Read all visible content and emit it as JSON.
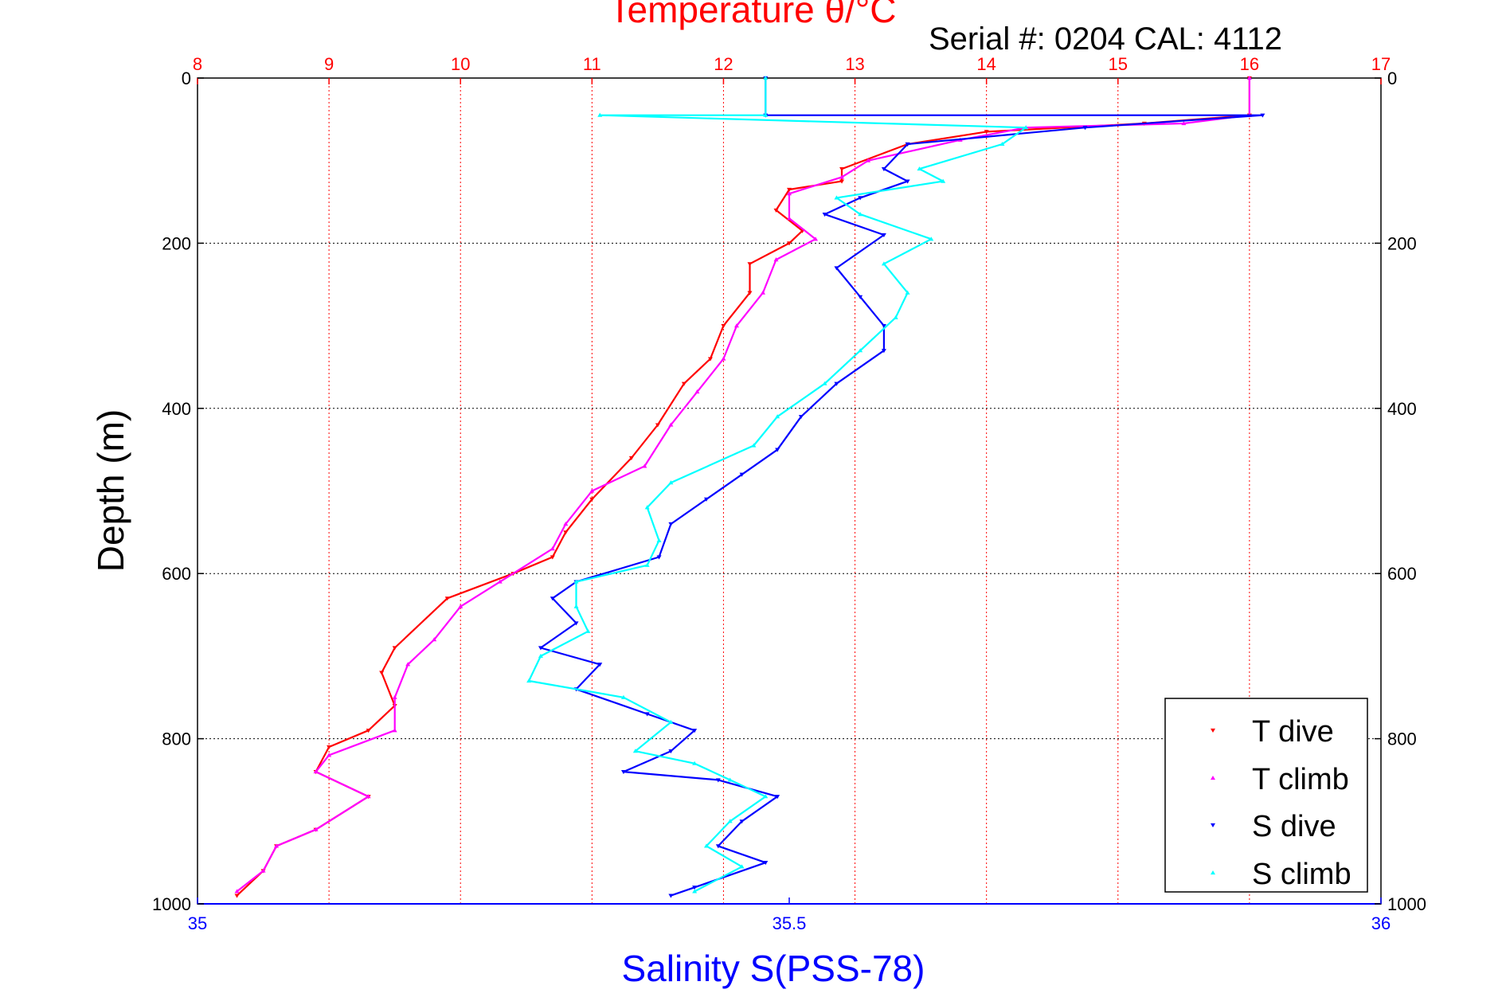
{
  "chart_data": {
    "type": "scatter",
    "title": "Temperature θ/°C",
    "annotation": "Serial #: 0204  CAL: 4112",
    "ylabel": "Depth (m)",
    "xlabel": "Salinity S(PSS-78)",
    "depth_axis": {
      "range": [
        0,
        1000
      ],
      "ticks": [
        0,
        200,
        400,
        600,
        800,
        1000
      ],
      "reversed": true
    },
    "temperature_axis": {
      "position": "top",
      "range": [
        8,
        17
      ],
      "ticks": [
        8,
        9,
        10,
        11,
        12,
        13,
        14,
        15,
        16,
        17
      ],
      "color": "#ff0000"
    },
    "salinity_axis": {
      "position": "bottom",
      "range": [
        35,
        36
      ],
      "ticks": [
        35,
        35.5,
        36
      ],
      "tick_labels": [
        "35",
        "35.5",
        "36"
      ],
      "color": "#0000ff"
    },
    "grid": {
      "vertical": "temperature ticks, red dotted",
      "horizontal": "depth ticks, black dotted"
    },
    "legend": {
      "placement": "bottom-right"
    },
    "series": [
      {
        "name": "T dive",
        "axis": "temperature",
        "color": "#ff0000",
        "marker": "triangle-down",
        "points": [
          [
            16.0,
            0
          ],
          [
            16.0,
            45
          ],
          [
            15.2,
            55
          ],
          [
            14.0,
            65
          ],
          [
            13.4,
            80
          ],
          [
            12.9,
            110
          ],
          [
            12.9,
            125
          ],
          [
            12.5,
            135
          ],
          [
            12.4,
            160
          ],
          [
            12.6,
            185
          ],
          [
            12.5,
            200
          ],
          [
            12.2,
            225
          ],
          [
            12.2,
            260
          ],
          [
            12.0,
            300
          ],
          [
            11.9,
            340
          ],
          [
            11.7,
            370
          ],
          [
            11.5,
            420
          ],
          [
            11.3,
            460
          ],
          [
            11.0,
            510
          ],
          [
            10.8,
            550
          ],
          [
            10.7,
            580
          ],
          [
            10.4,
            600
          ],
          [
            9.9,
            630
          ],
          [
            9.5,
            690
          ],
          [
            9.4,
            720
          ],
          [
            9.5,
            760
          ],
          [
            9.3,
            790
          ],
          [
            9.0,
            810
          ],
          [
            8.9,
            840
          ],
          [
            9.3,
            870
          ],
          [
            8.9,
            910
          ],
          [
            8.6,
            930
          ],
          [
            8.5,
            960
          ],
          [
            8.3,
            990
          ]
        ]
      },
      {
        "name": "T climb",
        "axis": "temperature",
        "color": "#ff00ff",
        "marker": "triangle-up",
        "points": [
          [
            16.0,
            0
          ],
          [
            16.0,
            45
          ],
          [
            15.5,
            55
          ],
          [
            14.3,
            60
          ],
          [
            13.8,
            75
          ],
          [
            13.1,
            100
          ],
          [
            12.9,
            120
          ],
          [
            12.5,
            140
          ],
          [
            12.5,
            170
          ],
          [
            12.7,
            195
          ],
          [
            12.4,
            220
          ],
          [
            12.3,
            260
          ],
          [
            12.1,
            300
          ],
          [
            12.0,
            340
          ],
          [
            11.8,
            380
          ],
          [
            11.6,
            420
          ],
          [
            11.4,
            470
          ],
          [
            11.0,
            500
          ],
          [
            10.8,
            540
          ],
          [
            10.7,
            570
          ],
          [
            10.3,
            610
          ],
          [
            10.0,
            640
          ],
          [
            9.8,
            680
          ],
          [
            9.6,
            710
          ],
          [
            9.5,
            750
          ],
          [
            9.5,
            790
          ],
          [
            9.0,
            820
          ],
          [
            8.9,
            840
          ],
          [
            9.3,
            870
          ],
          [
            8.9,
            910
          ],
          [
            8.6,
            930
          ],
          [
            8.5,
            960
          ],
          [
            8.3,
            985
          ]
        ]
      },
      {
        "name": "S dive",
        "axis": "salinity",
        "color": "#0000ff",
        "marker": "triangle-down",
        "points": [
          [
            35.48,
            0
          ],
          [
            35.48,
            45
          ],
          [
            35.9,
            45
          ],
          [
            35.75,
            60
          ],
          [
            35.6,
            80
          ],
          [
            35.58,
            110
          ],
          [
            35.6,
            125
          ],
          [
            35.56,
            145
          ],
          [
            35.53,
            165
          ],
          [
            35.58,
            190
          ],
          [
            35.54,
            230
          ],
          [
            35.56,
            265
          ],
          [
            35.58,
            300
          ],
          [
            35.58,
            330
          ],
          [
            35.54,
            370
          ],
          [
            35.51,
            410
          ],
          [
            35.49,
            450
          ],
          [
            35.46,
            480
          ],
          [
            35.43,
            510
          ],
          [
            35.4,
            540
          ],
          [
            35.39,
            580
          ],
          [
            35.32,
            610
          ],
          [
            35.3,
            630
          ],
          [
            35.32,
            660
          ],
          [
            35.29,
            690
          ],
          [
            35.34,
            710
          ],
          [
            35.32,
            740
          ],
          [
            35.38,
            770
          ],
          [
            35.42,
            790
          ],
          [
            35.4,
            815
          ],
          [
            35.36,
            840
          ],
          [
            35.44,
            850
          ],
          [
            35.49,
            870
          ],
          [
            35.46,
            900
          ],
          [
            35.44,
            930
          ],
          [
            35.48,
            950
          ],
          [
            35.42,
            980
          ],
          [
            35.4,
            990
          ]
        ]
      },
      {
        "name": "S climb",
        "axis": "salinity",
        "color": "#00ffff",
        "marker": "triangle-up",
        "points": [
          [
            35.48,
            0
          ],
          [
            35.48,
            45
          ],
          [
            35.34,
            45
          ],
          [
            35.7,
            60
          ],
          [
            35.68,
            80
          ],
          [
            35.61,
            110
          ],
          [
            35.63,
            125
          ],
          [
            35.54,
            145
          ],
          [
            35.56,
            165
          ],
          [
            35.62,
            195
          ],
          [
            35.58,
            225
          ],
          [
            35.6,
            260
          ],
          [
            35.59,
            290
          ],
          [
            35.56,
            330
          ],
          [
            35.53,
            370
          ],
          [
            35.49,
            410
          ],
          [
            35.47,
            445
          ],
          [
            35.4,
            490
          ],
          [
            35.38,
            520
          ],
          [
            35.39,
            560
          ],
          [
            35.38,
            590
          ],
          [
            35.32,
            610
          ],
          [
            35.32,
            640
          ],
          [
            35.33,
            670
          ],
          [
            35.29,
            700
          ],
          [
            35.28,
            730
          ],
          [
            35.36,
            750
          ],
          [
            35.4,
            780
          ],
          [
            35.37,
            815
          ],
          [
            35.42,
            830
          ],
          [
            35.45,
            850
          ],
          [
            35.48,
            870
          ],
          [
            35.45,
            900
          ],
          [
            35.43,
            930
          ],
          [
            35.46,
            955
          ],
          [
            35.42,
            985
          ]
        ]
      }
    ]
  }
}
